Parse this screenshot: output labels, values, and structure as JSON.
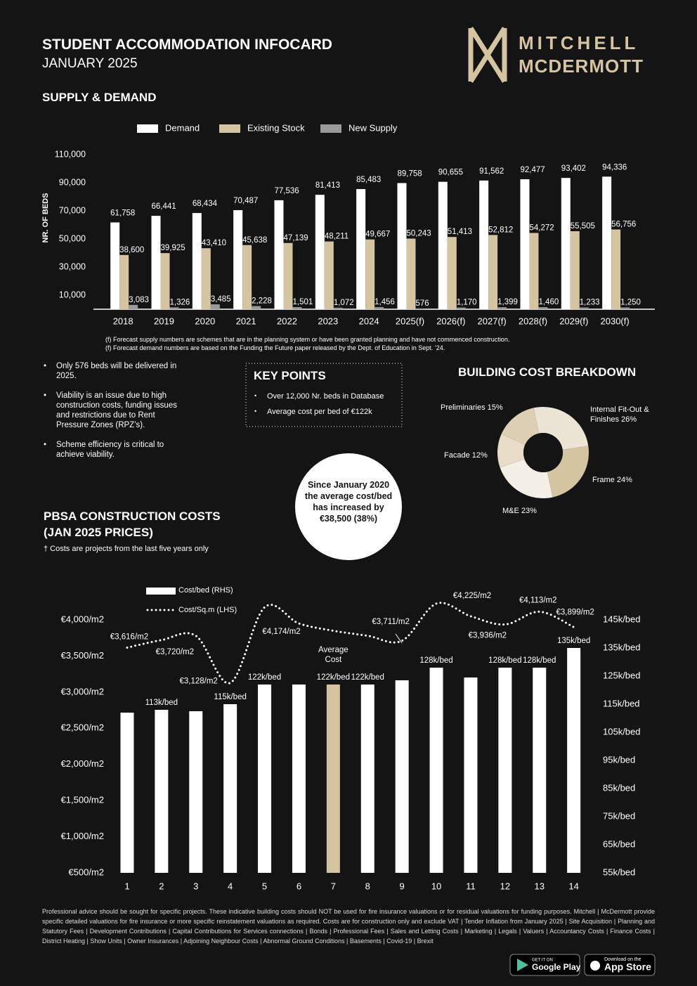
{
  "header": {
    "title": "STUDENT ACCOMMODATION INFOCARD",
    "subtitle": "JANUARY 2025",
    "brand": [
      "MITCHELL",
      "MCDERMOTT"
    ]
  },
  "chart_data": [
    {
      "type": "bar",
      "title": "SUPPLY & DEMAND",
      "ylabel": "NR. OF BEDS",
      "categories": [
        "2018",
        "2019",
        "2020",
        "2021",
        "2022",
        "2023",
        "2024",
        "2025(f)",
        "2026(f)",
        "2027(f)",
        "2028(f)",
        "2029(f)",
        "2030(f)"
      ],
      "series": [
        {
          "name": "Demand",
          "color": "#ffffff",
          "values": [
            61758,
            66441,
            68434,
            70487,
            77536,
            81413,
            85483,
            89758,
            90655,
            91562,
            92477,
            93402,
            94336
          ],
          "value_labels": [
            "61,758",
            "66,441",
            "68,434",
            "70,487",
            "77,536",
            "81,413",
            "85,483",
            "89,758",
            "90,655",
            "91,562",
            "92,477",
            "93,402",
            "94,336"
          ]
        },
        {
          "name": "Existing Stock",
          "color": "#d4c4a0",
          "values": [
            38600,
            39925,
            43410,
            45638,
            47139,
            48211,
            49667,
            50243,
            51413,
            52812,
            54272,
            55505,
            56756
          ],
          "value_labels": [
            "38,600",
            "39,925",
            "43,410",
            "45,638",
            "47,139",
            "48,211",
            "49,667",
            "50,243",
            "51,413",
            "52,812",
            "54,272",
            "55,505",
            "56,756"
          ]
        },
        {
          "name": "New Supply",
          "color": "#9a9a9a",
          "values": [
            3083,
            1326,
            3485,
            2228,
            1501,
            1072,
            1456,
            576,
            1170,
            1399,
            1460,
            1233,
            1250
          ],
          "value_labels": [
            "3,083",
            "1,326",
            "3,485",
            "2,228",
            "1,501",
            "1,072",
            "1,456",
            "576",
            "1,170",
            "1,399",
            "1,460",
            "1,233",
            "1,250"
          ]
        }
      ],
      "ylim": [
        0,
        110000
      ],
      "yticks": [
        {
          "value": 10000,
          "label": "10,000"
        },
        {
          "value": 30000,
          "label": "30,000"
        },
        {
          "value": 50000,
          "label": "50,000"
        },
        {
          "value": 70000,
          "label": "70,000"
        },
        {
          "value": 90000,
          "label": "90,000"
        },
        {
          "value": 110000,
          "label": "110,000"
        }
      ],
      "notes": [
        "(f) Forecast supply numbers are schemes that are in the planning system or have been granted planning and have not commenced construction.",
        "(f) Forecast demand numbers are based on the Funding the Future paper released by the Dept. of Education in Sept. ’24."
      ]
    },
    {
      "type": "pie",
      "title": "BUILDING COST BREAKDOWN",
      "categories": [
        "Internal Fit-Out & Finishes",
        "Frame",
        "M&E",
        "Facade",
        "Preliminaries"
      ],
      "values": [
        26,
        24,
        23,
        12,
        15
      ],
      "value_labels": [
        "26%",
        "24%",
        "23%",
        "12%",
        "15%"
      ],
      "colors": [
        "#ece5d5",
        "#d4c4a0",
        "#f4f0e7",
        "#e6dcc7",
        "#dccfb3"
      ]
    },
    {
      "type": "bar_line",
      "title": "PBSA CONSTRUCTION COSTS (JAN 2025 PRICES)",
      "note": "† Costs are projects from the last five years only",
      "categories": [
        1,
        2,
        3,
        4,
        5,
        6,
        7,
        8,
        9,
        10,
        11,
        12,
        13,
        14
      ],
      "highlight": {
        "index": 6,
        "color": "#d4c4a0",
        "label": "Average Cost"
      },
      "series": [
        {
          "name": "Cost/bed (RHS)",
          "type": "bar",
          "axis": "y2",
          "color": "#ffffff",
          "values": [
            112,
            113,
            112.5,
            115,
            122,
            122,
            122,
            122,
            123.5,
            128,
            124.5,
            128,
            128,
            135
          ],
          "value_labels": [
            null,
            "113k/bed",
            null,
            "115k/bed",
            "122k/bed",
            null,
            "122k/bed",
            "122k/bed",
            null,
            "128k/bed",
            null,
            "128k/bed",
            "128k/bed",
            "135k/bed"
          ]
        },
        {
          "name": "Cost/Sq.m (LHS)",
          "type": "line",
          "axis": "y",
          "color": "#ffffff",
          "style": "dotted",
          "values": [
            3616,
            3720,
            3780,
            3128,
            4174,
            3950,
            3850,
            3780,
            3711,
            4225,
            4050,
            3936,
            4113,
            3899
          ],
          "value_labels": [
            "€3,616/m2",
            "€3,720/m2",
            null,
            "€3,128/m2",
            "€4,174/m2",
            null,
            null,
            null,
            "€3,711/m2",
            "€4,225/m2",
            null,
            "€3,936/m2",
            "€4,113/m2",
            "€3,899/m2"
          ]
        }
      ],
      "ylim": [
        500,
        4000
      ],
      "yticks": [
        {
          "value": 500,
          "label": "€500/m2"
        },
        {
          "value": 1000,
          "label": "€1,000/m2"
        },
        {
          "value": 1500,
          "label": "€1,500/m2"
        },
        {
          "value": 2000,
          "label": "€2,000/m2"
        },
        {
          "value": 2500,
          "label": "€2,500/m2"
        },
        {
          "value": 3000,
          "label": "€3,000/m2"
        },
        {
          "value": 3500,
          "label": "€3,500/m2"
        },
        {
          "value": 4000,
          "label": "€4,000/m2"
        }
      ],
      "y2lim": [
        55,
        145
      ],
      "y2ticks": [
        {
          "value": 55,
          "label": "55k/bed"
        },
        {
          "value": 65,
          "label": "65k/bed"
        },
        {
          "value": 75,
          "label": "75k/bed"
        },
        {
          "value": 85,
          "label": "85k/bed"
        },
        {
          "value": 95,
          "label": "95k/bed"
        },
        {
          "value": 105,
          "label": "105k/bed"
        },
        {
          "value": 115,
          "label": "115k/bed"
        },
        {
          "value": 125,
          "label": "125k/bed"
        },
        {
          "value": 135,
          "label": "135k/bed"
        },
        {
          "value": 145,
          "label": "145k/bed"
        }
      ]
    }
  ],
  "supply_bullets": [
    "Only 576 beds will be delivered in 2025.",
    "Viability is an issue due to high construction costs, funding issues and restrictions due to Rent Pressure Zones (RPZ’s).",
    "Scheme efficiency is critical to achieve viability."
  ],
  "key_points": {
    "title": "KEY POINTS",
    "items": [
      "Over 12,000 Nr. beds in Database",
      "Average cost per bed of €122k"
    ]
  },
  "callout": "Since January 2020 the average cost/bed has increased by €38,500 (38%)",
  "disclaimer": "Professional advice should be sought for specific projects. These indicative building costs should NOT be used for fire insurance valuations or for residual valuations for funding purposes. Mitchell | McDermott provide specific detailed valuations for fire insurance or more specific reinstatement valuations as required. Costs are for construction only and exclude VAT | Tender Inflation from January 2025 | Site Acquisition | Planning and Statutory Fees | Development Contributions | Capital Contributions for Services connections | Bonds | Professional Fees | Sales and Letting Costs | Marketing | Legals | Valuers | Accountancy Costs | Finance Costs | District Heating | Show Units | Owner Insurances | Adjoining Neighbour Costs | Abnormal Ground Conditions | Basements | Covid-19 | Brexit",
  "stores": [
    {
      "small": "GET IT ON",
      "big": "Google Play"
    },
    {
      "small": "Download on the",
      "big": "App Store"
    }
  ]
}
